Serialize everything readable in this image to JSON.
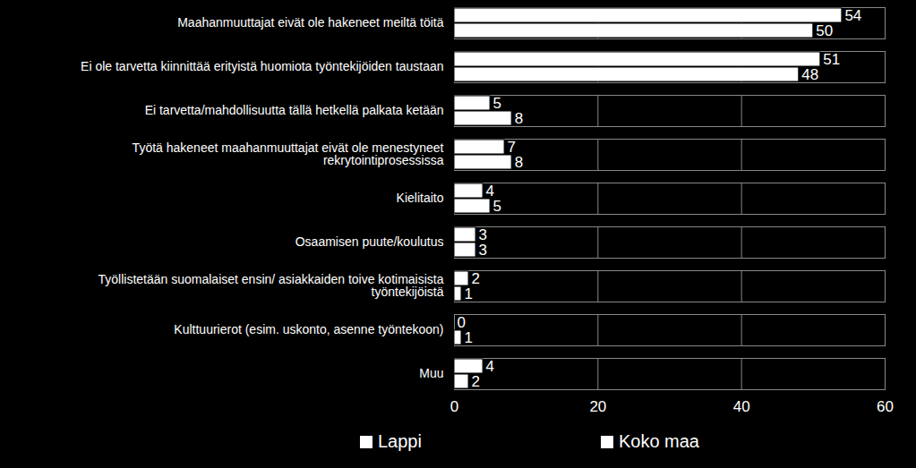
{
  "chart_data": {
    "type": "bar",
    "orientation": "horizontal",
    "categories": [
      "Maahanmuuttajat eivät ole hakeneet meiltä töitä",
      "Ei ole tarvetta kiinnittää erityistä huomiota työntekijöiden taustaan",
      "Ei tarvetta/mahdollisuutta tällä hetkellä palkata ketään",
      "Työtä hakeneet maahanmuuttajat eivät ole menestyneet rekrytointiprosessissa",
      "Kielitaito",
      "Osaamisen puute/koulutus",
      "Työllistetään suomalaiset ensin/ asiakkaiden toive kotimaisista työntekijöistä",
      "Kulttuurierot (esim. uskonto, asenne työntekoon)",
      "Muu"
    ],
    "series": [
      {
        "name": "Lappi",
        "color": "#ffffff",
        "values": [
          54,
          51,
          5,
          7,
          4,
          3,
          2,
          0,
          4
        ]
      },
      {
        "name": "Koko maa",
        "color": "#ffffff",
        "values": [
          50,
          48,
          8,
          8,
          5,
          3,
          1,
          1,
          2
        ]
      }
    ],
    "xlim": [
      0,
      60
    ],
    "xticks": [
      0,
      20,
      40,
      60
    ],
    "grid": true,
    "data_labels": true,
    "legend": "bottom"
  }
}
